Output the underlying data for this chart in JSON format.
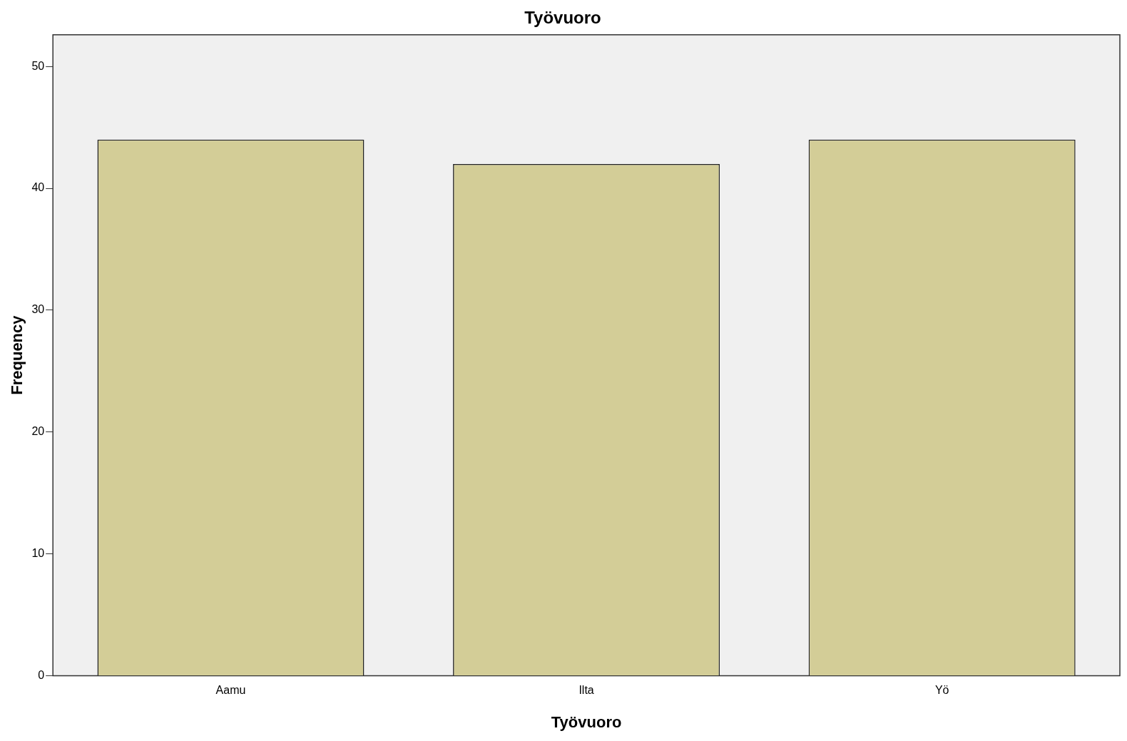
{
  "chart_data": {
    "type": "bar",
    "title": "Työvuoro",
    "xlabel": "Työvuoro",
    "ylabel": "Frequency",
    "categories": [
      "Aamu",
      "Ilta",
      "Yö"
    ],
    "values": [
      44,
      42,
      44
    ],
    "color": "#d3cd97",
    "ylim": [
      0,
      52.6
    ],
    "yticks": [
      0,
      10,
      20,
      30,
      40,
      50
    ],
    "grid": false,
    "legend": false
  }
}
